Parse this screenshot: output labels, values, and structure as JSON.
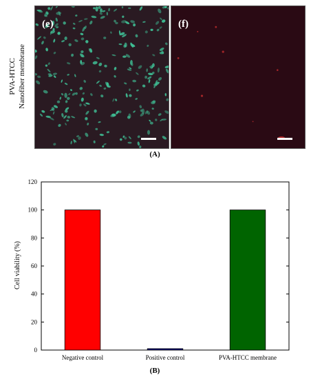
{
  "row_label": {
    "line1": "PVA-HTCC",
    "line2": "Nanofiber membrane"
  },
  "panels": [
    {
      "label": "(e)",
      "background": "#2a1a22",
      "cell_color": "#3fbf95"
    },
    {
      "label": "(f)",
      "background": "#2a0a14",
      "cell_color": "#d23030"
    }
  ],
  "figure_labels": {
    "top": "(A)",
    "bottom": "(B)"
  },
  "chart_data": {
    "type": "bar",
    "categories": [
      "Negative control",
      "Positive control",
      "PVA-HTCC membrane"
    ],
    "values": [
      100,
      1,
      100
    ],
    "colors": [
      "#ff0000",
      "#000080",
      "#006400"
    ],
    "ylabel": "Cell viability (%)",
    "xlabel": "",
    "ylim": [
      0,
      120
    ],
    "yticks": [
      0,
      20,
      40,
      60,
      80,
      100,
      120
    ],
    "grid": false
  }
}
